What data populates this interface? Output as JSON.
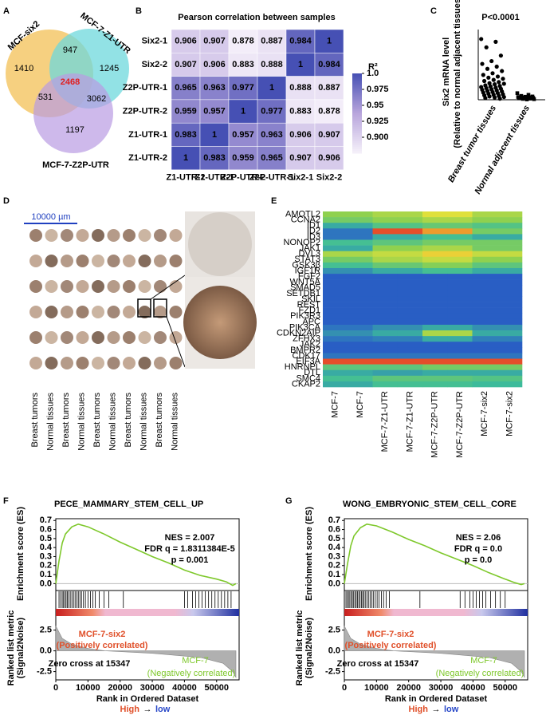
{
  "panel_labels": [
    "A",
    "B",
    "C",
    "D",
    "E",
    "F",
    "G"
  ],
  "venn": {
    "set_labels": [
      "MCF-six2",
      "MCF-7-Z1-UTR",
      "MCF-7-Z2P-UTR"
    ],
    "counts": [
      1410,
      947,
      1245,
      2468,
      531,
      3062,
      1197
    ]
  },
  "tissue_array": {
    "scale_bar": "10000 µm",
    "column_labels": [
      "Breast tumors",
      "Normal tissues",
      "Breast tumors",
      "Normal tissues",
      "Breast tumors",
      "Normal tissues",
      "Breast tumors",
      "Normal tissues",
      "Breast tumors",
      "Normal tissues"
    ]
  },
  "chart_data": [
    {
      "type": "corrmap",
      "title": "Pearson correlation between samples",
      "rows": [
        "Six2-1",
        "Six2-2",
        "Z2P-UTR-1",
        "Z2P-UTR-2",
        "Z1-UTR-1",
        "Z1-UTR-2"
      ],
      "columns": [
        "Z1-UTR-2",
        "Z1-UTR-1",
        "Z2P-UTR-2",
        "Z2P-UTR-1",
        "Six2-1",
        "Six2-2"
      ],
      "values": [
        [
          0.906,
          0.907,
          0.878,
          0.887,
          0.984,
          1
        ],
        [
          0.907,
          0.906,
          0.883,
          0.888,
          1,
          0.984
        ],
        [
          0.965,
          0.963,
          0.977,
          1,
          0.888,
          0.887
        ],
        [
          0.959,
          0.957,
          1,
          0.977,
          0.883,
          0.878
        ],
        [
          0.983,
          1,
          0.957,
          0.963,
          0.906,
          0.907
        ],
        [
          1,
          0.983,
          0.959,
          0.965,
          0.907,
          0.906
        ]
      ],
      "colorbar_title": "R²",
      "clim": [
        0.875,
        1.0
      ],
      "cticks": [
        {
          "value": 1.0,
          "label": "1.0"
        },
        0.975,
        0.95,
        0.925,
        {
          "value": 0.9,
          "label": "0.900"
        }
      ],
      "colors": [
        "#f6f1fa",
        "#b8a5dc",
        "#4650b4"
      ]
    },
    {
      "type": "strip",
      "title": "P<0.0001",
      "ylabel": [
        "Six2 mRNA level",
        "(Relative to normal adjacent tissues)"
      ],
      "categories": [
        "Breast tumor tissues",
        "Normal adjacent tissues"
      ],
      "ylim": [
        0,
        1200
      ],
      "color": "#000000",
      "values": [
        [
          1100,
          1050,
          950,
          800,
          700,
          650,
          600,
          560,
          520,
          480,
          450,
          420,
          400,
          380,
          360,
          340,
          320,
          300,
          290,
          280,
          260,
          250,
          240,
          230,
          220,
          210,
          200,
          190,
          180,
          170,
          160,
          150,
          140,
          130,
          120,
          110,
          100,
          90,
          80,
          70,
          60,
          50,
          40,
          30,
          20
        ],
        [
          120,
          90,
          70,
          60,
          55,
          50,
          45,
          40,
          35,
          30,
          25,
          20,
          15,
          10,
          5
        ]
      ]
    },
    {
      "type": "heatmap",
      "rows": [
        "AMOTL2",
        "CCNA2",
        "ID1",
        "ID2",
        "ID3",
        "NONOP2",
        "JAK1",
        "DVL3",
        "STAT3",
        "GSK3β",
        "IGF1R",
        "FGF2",
        "WNT5A",
        "SMAD5",
        "SETDB1",
        "SKIL",
        "REST",
        "FZD1",
        "PIK3R3",
        "APC",
        "PIK3CA",
        "CDKN2AIP",
        "ZFHX3",
        "JAK2",
        "BMPR2",
        "CDK17",
        "EIF3A",
        "HNRNPL",
        "DTL",
        "SMC4",
        "CKAP2"
      ],
      "columns": [
        "MCF-7",
        "MCF-7",
        "MCF-7-Z1-UTR",
        "MCF-7-Z1-UTR",
        "MCF-7-Z2P-UTR",
        "MCF-7-Z2P-UTR",
        "MCF-7-six2",
        "MCF-7-six2"
      ],
      "clim": [
        0,
        1
      ],
      "colors": [
        "#1b2fa0",
        "#2a63c8",
        "#3dbd9a",
        "#8fd14f",
        "#e8e23a",
        "#f08a2a",
        "#e0342a"
      ],
      "values": [
        [
          0.5,
          0.5,
          0.55,
          0.55,
          0.65,
          0.65,
          0.55,
          0.55
        ],
        [
          0.45,
          0.45,
          0.5,
          0.5,
          0.55,
          0.55,
          0.5,
          0.5
        ],
        [
          0.3,
          0.3,
          0.38,
          0.38,
          0.42,
          0.42,
          0.38,
          0.38
        ],
        [
          0.2,
          0.2,
          0.95,
          0.95,
          0.8,
          0.8,
          0.45,
          0.45
        ],
        [
          0.2,
          0.2,
          0.3,
          0.3,
          0.35,
          0.35,
          0.3,
          0.3
        ],
        [
          0.35,
          0.35,
          0.4,
          0.4,
          0.45,
          0.45,
          0.45,
          0.45
        ],
        [
          0.3,
          0.3,
          0.5,
          0.5,
          0.55,
          0.55,
          0.45,
          0.45
        ],
        [
          0.55,
          0.55,
          0.6,
          0.6,
          0.7,
          0.7,
          0.6,
          0.6
        ],
        [
          0.45,
          0.45,
          0.55,
          0.55,
          0.6,
          0.6,
          0.5,
          0.5
        ],
        [
          0.35,
          0.35,
          0.42,
          0.42,
          0.48,
          0.48,
          0.4,
          0.4
        ],
        [
          0.25,
          0.25,
          0.3,
          0.3,
          0.35,
          0.35,
          0.3,
          0.3
        ],
        [
          0.15,
          0.15,
          0.15,
          0.15,
          0.15,
          0.15,
          0.15,
          0.15
        ],
        [
          0.15,
          0.15,
          0.15,
          0.15,
          0.15,
          0.15,
          0.15,
          0.15
        ],
        [
          0.15,
          0.15,
          0.15,
          0.15,
          0.15,
          0.15,
          0.15,
          0.15
        ],
        [
          0.15,
          0.15,
          0.15,
          0.15,
          0.15,
          0.15,
          0.15,
          0.15
        ],
        [
          0.15,
          0.15,
          0.15,
          0.15,
          0.15,
          0.15,
          0.15,
          0.15
        ],
        [
          0.15,
          0.15,
          0.15,
          0.15,
          0.15,
          0.15,
          0.15,
          0.15
        ],
        [
          0.15,
          0.15,
          0.15,
          0.15,
          0.15,
          0.15,
          0.15,
          0.15
        ],
        [
          0.15,
          0.15,
          0.15,
          0.15,
          0.15,
          0.15,
          0.15,
          0.15
        ],
        [
          0.15,
          0.15,
          0.15,
          0.15,
          0.15,
          0.15,
          0.15,
          0.15
        ],
        [
          0.2,
          0.2,
          0.25,
          0.25,
          0.3,
          0.3,
          0.25,
          0.25
        ],
        [
          0.25,
          0.25,
          0.3,
          0.3,
          0.55,
          0.55,
          0.3,
          0.3
        ],
        [
          0.2,
          0.2,
          0.22,
          0.22,
          0.3,
          0.3,
          0.22,
          0.22
        ],
        [
          0.15,
          0.15,
          0.15,
          0.15,
          0.15,
          0.15,
          0.15,
          0.15
        ],
        [
          0.15,
          0.15,
          0.15,
          0.15,
          0.15,
          0.15,
          0.15,
          0.15
        ],
        [
          0.2,
          0.2,
          0.2,
          0.2,
          0.2,
          0.2,
          0.2,
          0.2
        ],
        [
          0.95,
          0.95,
          0.95,
          0.95,
          0.95,
          0.95,
          0.95,
          0.95
        ],
        [
          0.4,
          0.4,
          0.4,
          0.4,
          0.45,
          0.45,
          0.45,
          0.45
        ],
        [
          0.3,
          0.3,
          0.28,
          0.28,
          0.3,
          0.3,
          0.3,
          0.3
        ],
        [
          0.35,
          0.35,
          0.4,
          0.4,
          0.4,
          0.4,
          0.38,
          0.38
        ],
        [
          0.3,
          0.3,
          0.35,
          0.35,
          0.35,
          0.35,
          0.33,
          0.33
        ]
      ]
    },
    {
      "type": "gsea",
      "title": "PECE_MAMMARY_STEM_CELL_UP",
      "stats": [
        "NES = 2.007",
        "FDR q = 1.8311384E-5",
        "p = 0.001"
      ],
      "ylabel": "Enrichment score (ES)",
      "color": "#7ec82b",
      "x": [
        0,
        1000,
        2000,
        3000,
        5000,
        7000,
        10000,
        15000,
        20000,
        25000,
        30000,
        35000,
        40000,
        45000,
        50000,
        53000,
        55000,
        56000
      ],
      "values": [
        0,
        0.25,
        0.45,
        0.55,
        0.63,
        0.66,
        0.63,
        0.55,
        0.46,
        0.38,
        0.3,
        0.23,
        0.15,
        0.09,
        0.05,
        0.02,
        -0.02,
        0
      ],
      "ylim": [
        -0.05,
        0.72
      ],
      "yticks": [
        {
          "value": 0,
          "label": "0.0"
        },
        0.1,
        0.2,
        0.3,
        0.4,
        0.5,
        0.6,
        0.7
      ],
      "xlim": [
        0,
        57000
      ],
      "xticks": [
        0,
        10000,
        20000,
        30000,
        40000,
        50000
      ],
      "hits": [
        1000,
        1500,
        2000,
        2400,
        2800,
        3200,
        3600,
        4000,
        4500,
        5000,
        5500,
        6000,
        6500,
        7000,
        7500,
        8000,
        8600,
        9200,
        10000,
        10800,
        11500,
        12300,
        13500,
        15000,
        16500,
        21000,
        40000,
        41000,
        42500,
        43500,
        44500,
        45500,
        46500,
        47500,
        48500,
        49500,
        50500,
        51500,
        52500,
        53500,
        54500
      ],
      "metric": {
        "ylabel": [
          "Ranked list metric",
          "(Signal2Noise)"
        ],
        "x": [
          0,
          2000,
          5000,
          10000,
          15347,
          30000,
          45000,
          52000,
          55000,
          56000
        ],
        "values": [
          3.0,
          1.5,
          0.8,
          0.3,
          0,
          -0.3,
          -0.8,
          -1.5,
          -2.5,
          -3.2
        ],
        "ylim": [
          -3.5,
          4
        ],
        "yticks": [
          2.5,
          {
            "value": 0,
            "label": "0.0"
          },
          -2.5
        ]
      },
      "pos_label": "MCF-7-six2",
      "pos_sub": "(Positively correlated)",
      "zero_cross": "Zero cross at 15347",
      "neg_label": "MCF-7",
      "neg_sub": "(Negatively correlated)",
      "xlabel": "Rank in Ordered Dataset",
      "xlabel_sub": [
        "High",
        "→",
        "low"
      ]
    },
    {
      "type": "gsea",
      "title": "WONG_EMBRYONIC_STEM_CELL_CORE",
      "stats": [
        "NES = 2.06",
        "FDR q = 0.0",
        "p = 0.0"
      ],
      "ylabel": "Enrichment score (ES)",
      "color": "#7ec82b",
      "x": [
        0,
        1000,
        2000,
        3000,
        5000,
        7000,
        10000,
        15000,
        20000,
        25000,
        30000,
        35000,
        40000,
        45000,
        50000,
        53000,
        55000,
        56000
      ],
      "values": [
        0,
        0.22,
        0.42,
        0.53,
        0.62,
        0.66,
        0.64,
        0.57,
        0.49,
        0.42,
        0.34,
        0.27,
        0.2,
        0.12,
        0.05,
        0.01,
        -0.01,
        0
      ],
      "ylim": [
        -0.05,
        0.72
      ],
      "yticks": [
        {
          "value": 0,
          "label": "0.0"
        },
        0.1,
        0.2,
        0.3,
        0.4,
        0.5,
        0.6,
        0.7
      ],
      "xlim": [
        0,
        57000
      ],
      "xticks": [
        0,
        10000,
        20000,
        30000,
        40000,
        50000
      ],
      "hits": [
        500,
        900,
        1300,
        1700,
        2100,
        2500,
        2900,
        3300,
        3700,
        4100,
        4500,
        4900,
        5300,
        5700,
        6100,
        6500,
        7000,
        7500,
        8000,
        8500,
        9000,
        9600,
        10200,
        10800,
        11500,
        12200,
        13000,
        14000,
        23500,
        36000,
        37500,
        39000,
        40000,
        41000,
        42000,
        43000,
        44000,
        45500,
        47000,
        48500,
        50000
      ],
      "metric": {
        "ylabel": [
          "Ranked list metric",
          "(Signal2Noise)"
        ],
        "x": [
          0,
          2000,
          5000,
          10000,
          15347,
          30000,
          45000,
          52000,
          55000,
          56000
        ],
        "values": [
          3.0,
          1.5,
          0.8,
          0.3,
          0,
          -0.3,
          -0.8,
          -1.5,
          -2.5,
          -3.2
        ],
        "ylim": [
          -3.5,
          4
        ],
        "yticks": [
          2.5,
          {
            "value": 0,
            "label": "0.0"
          },
          -2.5
        ]
      },
      "pos_label": "MCF-7-six2",
      "pos_sub": "(Positively correlated)",
      "zero_cross": "Zero cross at 15347",
      "neg_label": "MCF-7",
      "neg_sub": "(Negatively correlated)",
      "xlabel": "Rank in Ordered Dataset",
      "xlabel_sub": [
        "High",
        "→",
        "low"
      ]
    }
  ]
}
